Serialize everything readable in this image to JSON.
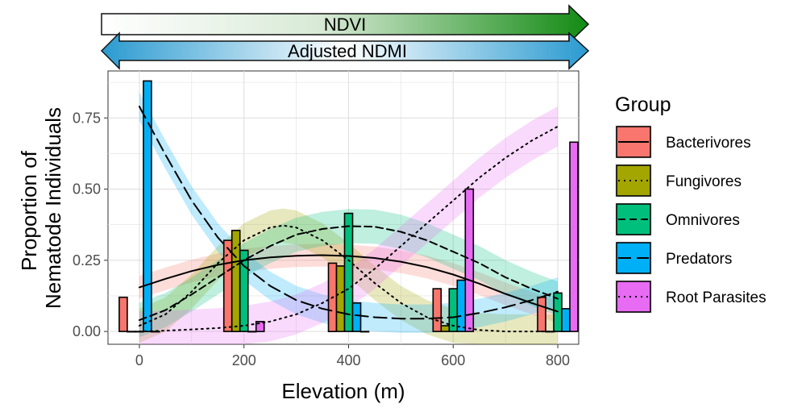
{
  "chart_data": {
    "type": "bar",
    "xlabel": "Elevation (m)",
    "ylabel": [
      "Proportion of",
      "Nematode Individuals"
    ],
    "xlim": [
      -60,
      840
    ],
    "ylim": [
      -0.045,
      0.915
    ],
    "xticks": [
      0,
      200,
      400,
      600,
      800
    ],
    "yticks": [
      0.0,
      0.25,
      0.5,
      0.75
    ],
    "ytick_labels": [
      "0.00",
      "0.25",
      "0.50",
      "0.75"
    ],
    "grid": true,
    "legend_position": "right",
    "categories": [
      0,
      200,
      400,
      600,
      800
    ],
    "legend": {
      "title": "Group"
    },
    "series": [
      {
        "name": "Bacterivores",
        "color": "#F8766D",
        "linestyle": "solid",
        "values": [
          0.12,
          0.32,
          0.24,
          0.15,
          0.12
        ],
        "trend": [
          [
            0,
            0.155
          ],
          [
            50,
            0.185
          ],
          [
            100,
            0.212
          ],
          [
            150,
            0.234
          ],
          [
            200,
            0.25
          ],
          [
            250,
            0.26
          ],
          [
            300,
            0.266
          ],
          [
            350,
            0.268
          ],
          [
            400,
            0.265
          ],
          [
            450,
            0.258
          ],
          [
            500,
            0.245
          ],
          [
            550,
            0.226
          ],
          [
            600,
            0.2
          ],
          [
            650,
            0.168
          ],
          [
            700,
            0.132
          ],
          [
            750,
            0.1
          ],
          [
            800,
            0.07
          ]
        ],
        "band_halfwidth": 0.04
      },
      {
        "name": "Fungivores",
        "color": "#A3A500",
        "linestyle": "dotted",
        "values": [
          0.0,
          0.355,
          0.23,
          0.02,
          0.0
        ],
        "trend": [
          [
            0,
            0.02
          ],
          [
            50,
            0.06
          ],
          [
            100,
            0.14
          ],
          [
            150,
            0.24
          ],
          [
            200,
            0.32
          ],
          [
            250,
            0.365
          ],
          [
            275,
            0.372
          ],
          [
            300,
            0.365
          ],
          [
            350,
            0.32
          ],
          [
            400,
            0.25
          ],
          [
            450,
            0.17
          ],
          [
            500,
            0.1
          ],
          [
            550,
            0.05
          ],
          [
            600,
            0.02
          ],
          [
            650,
            0.005
          ],
          [
            700,
            0.0
          ],
          [
            750,
            0.0
          ],
          [
            800,
            0.0
          ]
        ],
        "band_halfwidth": 0.06
      },
      {
        "name": "Omnivores",
        "color": "#00BF7D",
        "linestyle": "dashed",
        "values": [
          0.0,
          0.285,
          0.415,
          0.15,
          0.135
        ],
        "trend": [
          [
            0,
            0.04
          ],
          [
            50,
            0.075
          ],
          [
            100,
            0.13
          ],
          [
            150,
            0.19
          ],
          [
            200,
            0.25
          ],
          [
            250,
            0.3
          ],
          [
            300,
            0.34
          ],
          [
            350,
            0.36
          ],
          [
            400,
            0.37
          ],
          [
            450,
            0.368
          ],
          [
            500,
            0.35
          ],
          [
            550,
            0.32
          ],
          [
            600,
            0.28
          ],
          [
            650,
            0.24
          ],
          [
            700,
            0.19
          ],
          [
            750,
            0.15
          ],
          [
            800,
            0.115
          ]
        ],
        "band_halfwidth": 0.06
      },
      {
        "name": "Predators",
        "color": "#00B0F6",
        "linestyle": "longdash",
        "values": [
          0.88,
          0.0,
          0.1,
          0.18,
          0.08
        ],
        "trend": [
          [
            0,
            0.79
          ],
          [
            50,
            0.62
          ],
          [
            100,
            0.46
          ],
          [
            150,
            0.33
          ],
          [
            200,
            0.23
          ],
          [
            250,
            0.16
          ],
          [
            300,
            0.11
          ],
          [
            350,
            0.08
          ],
          [
            400,
            0.06
          ],
          [
            450,
            0.05
          ],
          [
            500,
            0.045
          ],
          [
            550,
            0.045
          ],
          [
            600,
            0.05
          ],
          [
            650,
            0.065
          ],
          [
            700,
            0.085
          ],
          [
            750,
            0.11
          ],
          [
            800,
            0.14
          ]
        ],
        "band_halfwidth": 0.05
      },
      {
        "name": "Root Parasites",
        "color": "#E76BF3",
        "linestyle": "dotted",
        "values": [
          0.0,
          0.035,
          0.0,
          0.5,
          0.665
        ],
        "trend": [
          [
            0,
            0.0
          ],
          [
            50,
            0.003
          ],
          [
            100,
            0.007
          ],
          [
            150,
            0.012
          ],
          [
            200,
            0.02
          ],
          [
            250,
            0.035
          ],
          [
            300,
            0.06
          ],
          [
            350,
            0.1
          ],
          [
            400,
            0.15
          ],
          [
            450,
            0.22
          ],
          [
            500,
            0.3
          ],
          [
            550,
            0.38
          ],
          [
            600,
            0.46
          ],
          [
            650,
            0.54
          ],
          [
            700,
            0.61
          ],
          [
            750,
            0.67
          ],
          [
            800,
            0.72
          ]
        ],
        "band_halfwidth": 0.07
      }
    ],
    "annotations": [
      {
        "text": "NDVI",
        "direction": "right",
        "gradient": [
          "#ffffff",
          "#138a13"
        ]
      },
      {
        "text": "Adjusted NDMI",
        "direction": "both",
        "gradient": [
          "#2a9ad0",
          "#ffffff",
          "#2a9ad0"
        ]
      }
    ]
  }
}
